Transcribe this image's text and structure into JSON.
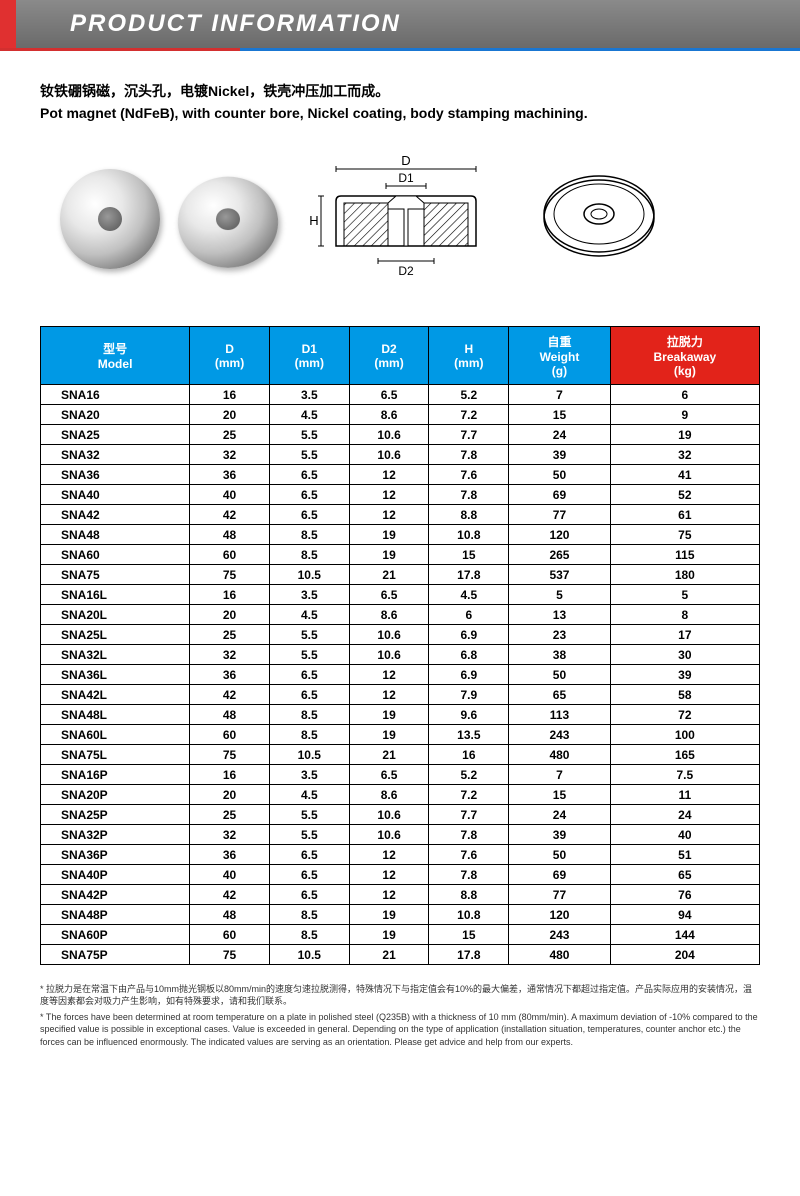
{
  "header": {
    "title": "PRODUCT INFORMATION"
  },
  "description": {
    "cn": "钕铁硼锅磁，沉头孔，电镀Nickel，铁壳冲压加工而成。",
    "en": "Pot magnet (NdFeB), with counter bore, Nickel coating, body stamping machining."
  },
  "diagram_labels": {
    "D": "D",
    "D1": "D1",
    "D2": "D2",
    "H": "H"
  },
  "table": {
    "columns": [
      {
        "cn": "型号",
        "en": "Model",
        "color": "blue"
      },
      {
        "cn": "D",
        "en": "(mm)",
        "color": "blue"
      },
      {
        "cn": "D1",
        "en": "(mm)",
        "color": "blue"
      },
      {
        "cn": "D2",
        "en": "(mm)",
        "color": "blue"
      },
      {
        "cn": "H",
        "en": "(mm)",
        "color": "blue"
      },
      {
        "cn": "自重",
        "en": "Weight",
        "unit": "(g)",
        "color": "blue"
      },
      {
        "cn": "拉脱力",
        "en": "Breakaway",
        "unit": "(kg)",
        "color": "red"
      }
    ],
    "rows": [
      [
        "SNA16",
        "16",
        "3.5",
        "6.5",
        "5.2",
        "7",
        "6"
      ],
      [
        "SNA20",
        "20",
        "4.5",
        "8.6",
        "7.2",
        "15",
        "9"
      ],
      [
        "SNA25",
        "25",
        "5.5",
        "10.6",
        "7.7",
        "24",
        "19"
      ],
      [
        "SNA32",
        "32",
        "5.5",
        "10.6",
        "7.8",
        "39",
        "32"
      ],
      [
        "SNA36",
        "36",
        "6.5",
        "12",
        "7.6",
        "50",
        "41"
      ],
      [
        "SNA40",
        "40",
        "6.5",
        "12",
        "7.8",
        "69",
        "52"
      ],
      [
        "SNA42",
        "42",
        "6.5",
        "12",
        "8.8",
        "77",
        "61"
      ],
      [
        "SNA48",
        "48",
        "8.5",
        "19",
        "10.8",
        "120",
        "75"
      ],
      [
        "SNA60",
        "60",
        "8.5",
        "19",
        "15",
        "265",
        "115"
      ],
      [
        "SNA75",
        "75",
        "10.5",
        "21",
        "17.8",
        "537",
        "180"
      ],
      [
        "SNA16L",
        "16",
        "3.5",
        "6.5",
        "4.5",
        "5",
        "5"
      ],
      [
        "SNA20L",
        "20",
        "4.5",
        "8.6",
        "6",
        "13",
        "8"
      ],
      [
        "SNA25L",
        "25",
        "5.5",
        "10.6",
        "6.9",
        "23",
        "17"
      ],
      [
        "SNA32L",
        "32",
        "5.5",
        "10.6",
        "6.8",
        "38",
        "30"
      ],
      [
        "SNA36L",
        "36",
        "6.5",
        "12",
        "6.9",
        "50",
        "39"
      ],
      [
        "SNA42L",
        "42",
        "6.5",
        "12",
        "7.9",
        "65",
        "58"
      ],
      [
        "SNA48L",
        "48",
        "8.5",
        "19",
        "9.6",
        "113",
        "72"
      ],
      [
        "SNA60L",
        "60",
        "8.5",
        "19",
        "13.5",
        "243",
        "100"
      ],
      [
        "SNA75L",
        "75",
        "10.5",
        "21",
        "16",
        "480",
        "165"
      ],
      [
        "SNA16P",
        "16",
        "3.5",
        "6.5",
        "5.2",
        "7",
        "7.5"
      ],
      [
        "SNA20P",
        "20",
        "4.5",
        "8.6",
        "7.2",
        "15",
        "11"
      ],
      [
        "SNA25P",
        "25",
        "5.5",
        "10.6",
        "7.7",
        "24",
        "24"
      ],
      [
        "SNA32P",
        "32",
        "5.5",
        "10.6",
        "7.8",
        "39",
        "40"
      ],
      [
        "SNA36P",
        "36",
        "6.5",
        "12",
        "7.6",
        "50",
        "51"
      ],
      [
        "SNA40P",
        "40",
        "6.5",
        "12",
        "7.8",
        "69",
        "65"
      ],
      [
        "SNA42P",
        "42",
        "6.5",
        "12",
        "8.8",
        "77",
        "76"
      ],
      [
        "SNA48P",
        "48",
        "8.5",
        "19",
        "10.8",
        "120",
        "94"
      ],
      [
        "SNA60P",
        "60",
        "8.5",
        "19",
        "15",
        "243",
        "144"
      ],
      [
        "SNA75P",
        "75",
        "10.5",
        "21",
        "17.8",
        "480",
        "204"
      ]
    ]
  },
  "notes": {
    "cn": "* 拉脱力是在常温下由产品与10mm抛光钢板以80mm/min的速度匀速拉脱测得，特殊情况下与指定值会有10%的最大偏差，通常情况下都超过指定值。产品实际应用的安装情况，温度等因素都会对吸力产生影响，如有特殊要求，请和我们联系。",
    "en": "* The forces have been determined at room temperature on a plate in polished steel (Q235B) with a thickness of 10 mm (80mm/min). A maximum deviation of -10% compared to the specified value is possible in exceptional cases. Value is exceeded in general. Depending on the type of application (installation situation, temperatures, counter anchor etc.) the forces can be influenced enormously. The indicated values are  serving as an orientation. Please get advice and help from our experts."
  }
}
